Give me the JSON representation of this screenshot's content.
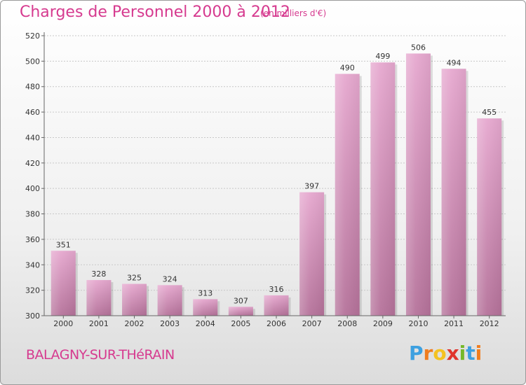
{
  "page": {
    "title": "Charges de Personnel 2000 à 2012",
    "subtitle": "(en milliers d'€)",
    "commune": "BALAGNY-SUR-THéRAIN",
    "logo": "Proxiti"
  },
  "chart_data": {
    "type": "bar",
    "title": "Charges de Personnel 2000 à 2012",
    "subtitle": "(en milliers d'€)",
    "xlabel": "",
    "ylabel": "",
    "categories": [
      "2000",
      "2001",
      "2002",
      "2003",
      "2004",
      "2005",
      "2006",
      "2007",
      "2008",
      "2009",
      "2010",
      "2011",
      "2012"
    ],
    "values": [
      351,
      328,
      325,
      324,
      313,
      307,
      316,
      397,
      490,
      499,
      506,
      494,
      455
    ],
    "ylim": [
      300,
      520
    ],
    "yticks": [
      300,
      320,
      340,
      360,
      380,
      400,
      420,
      440,
      460,
      480,
      500,
      520
    ],
    "grid": true,
    "bar_color": "#d98bb8"
  }
}
